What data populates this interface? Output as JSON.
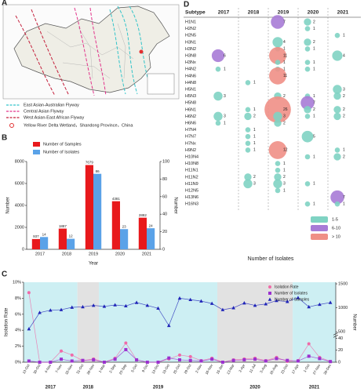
{
  "panel_labels": [
    "A",
    "B",
    "C",
    "D"
  ],
  "map": {
    "legend": [
      {
        "label": "East Asian-Australian Flyway",
        "color": "#33c4c9"
      },
      {
        "label": "Central Asian Flyway",
        "color": "#e2338a"
      },
      {
        "label": "West Asian-East African Flyway",
        "color": "#c41f3b"
      }
    ],
    "site": "Yellow River Delta Wetland，Shandong Province，China"
  },
  "chart_data": [
    {
      "type": "bar",
      "xlabel": "Year",
      "ylabel": "Number",
      "y2label": "Number",
      "categories": [
        "2017",
        "2018",
        "2019",
        "2020",
        "2021"
      ],
      "series": [
        {
          "name": "Number of Samples",
          "color": "#e8191c",
          "values": [
            937,
            1887,
            7679,
            4381,
            2882
          ]
        },
        {
          "name": "Number of Isolates",
          "color": "#5aa2e8",
          "axis": "y2",
          "values": [
            14,
            12,
            86,
            23,
            24
          ]
        }
      ],
      "ylim": [
        0,
        8000
      ],
      "yticks": [
        0,
        2000,
        4000,
        6000,
        8000
      ],
      "y2lim": [
        0,
        100
      ],
      "y2ticks": [
        0,
        20,
        40,
        60,
        80,
        100
      ]
    },
    {
      "type": "line",
      "ylabel": "Isolation Rate",
      "y2label": "Number",
      "categories": [
        "13-Oct",
        "30-Oct",
        "4-Nov",
        "7-Nov",
        "18-Nov",
        "31-Oct",
        "28-Nov",
        "1-Mar",
        "2-Sep",
        "23-Sep",
        "5-Oct",
        "9-Oct",
        "13-Oct",
        "19-Oct",
        "25-Oct",
        "29-Oct",
        "2-Nov",
        "16-Nov",
        "15-Jan",
        "13-Mar",
        "2-Apr",
        "11-Jul",
        "3-Aug",
        "16-Aug",
        "23-Oct",
        "17-Apr",
        "1-Oct",
        "27-Nov",
        "28-Dec"
      ],
      "year_groups": [
        {
          "label": "2017",
          "count": 5
        },
        {
          "label": "2018",
          "count": 2
        },
        {
          "label": "2019",
          "count": 11
        },
        {
          "label": "2020",
          "count": 7
        },
        {
          "label": "2021",
          "count": 4
        }
      ],
      "band_colors": [
        "#cdeff3",
        "#e2e2e2"
      ],
      "series": [
        {
          "name": "Isolation Rate",
          "color": "#f06aa8",
          "marker": "circle",
          "values": [
            8.7,
            0,
            0,
            1.4,
            0.9,
            0.2,
            0.4,
            0,
            0.5,
            2.4,
            0.3,
            0,
            0,
            0.4,
            0.9,
            0.7,
            0.2,
            0.5,
            0,
            0.3,
            0.4,
            0.5,
            0.2,
            0.6,
            0.1,
            0.2,
            2.3,
            0.6,
            0.1
          ]
        },
        {
          "name": "Number of Isolates",
          "color": "#9b30d0",
          "marker": "square",
          "axis": "y2",
          "values": [
            2,
            0,
            0,
            5,
            2,
            3,
            4,
            0,
            5,
            21,
            4,
            0,
            0,
            7,
            4,
            3,
            2,
            5,
            0,
            3,
            4,
            5,
            2,
            6,
            3,
            2,
            10,
            6,
            1
          ]
        },
        {
          "name": "Number of Samples",
          "color": "#1f24b8",
          "marker": "triangle",
          "axis": "y3",
          "values": [
            560,
            900,
            950,
            960,
            1010,
            1020,
            1050,
            1030,
            1060,
            1040,
            1110,
            1050,
            990,
            630,
            1200,
            1170,
            1140,
            1090,
            960,
            1000,
            1100,
            1050,
            1080,
            1150,
            1130,
            1210,
            1020,
            1070,
            1110
          ]
        }
      ],
      "ylim": [
        0,
        10
      ],
      "yticks": [
        {
          "value": 0,
          "label": "0%"
        },
        {
          "value": 2,
          "label": "2%"
        },
        {
          "value": 4,
          "label": "4%"
        },
        {
          "value": 6,
          "label": "6%"
        },
        {
          "value": 8,
          "label": "8%"
        },
        {
          "value": 10,
          "label": "10%"
        }
      ],
      "y2lim": [
        0,
        40
      ],
      "y2ticks": [
        0,
        20,
        40
      ],
      "y3lim": [
        500,
        1500
      ],
      "y3ticks": [
        500,
        1000,
        1500
      ]
    },
    {
      "type": "bubble_matrix",
      "row_header": "Subtype",
      "xlabel": "Number of Isolates",
      "columns": [
        "2017",
        "2018",
        "2019",
        "2020",
        "2021"
      ],
      "bins": [
        {
          "label": "1-5",
          "max": 5,
          "color": "#7fd3c3"
        },
        {
          "label": "6-10",
          "max": 10,
          "color": "#a77bd6"
        },
        {
          "label": "> 10",
          "max": null,
          "color": "#ef8f86"
        }
      ],
      "rows": [
        {
          "name": "H1N1",
          "values": [
            null,
            null,
            7,
            2,
            null
          ]
        },
        {
          "name": "H2N2",
          "values": [
            null,
            null,
            null,
            1,
            null
          ]
        },
        {
          "name": "H2N5",
          "values": [
            null,
            null,
            null,
            null,
            1
          ]
        },
        {
          "name": "H3N1",
          "values": [
            null,
            null,
            4,
            2,
            null
          ]
        },
        {
          "name": "H3N2",
          "values": [
            null,
            null,
            1,
            1,
            null
          ]
        },
        {
          "name": "H3N8",
          "values": [
            6,
            null,
            11,
            null,
            4
          ]
        },
        {
          "name": "H3Nx",
          "values": [
            null,
            null,
            1,
            1,
            null
          ]
        },
        {
          "name": "H4N2",
          "values": [
            1,
            null,
            1,
            1,
            null
          ]
        },
        {
          "name": "H4N6",
          "values": [
            null,
            null,
            11,
            null,
            null
          ]
        },
        {
          "name": "H4N8",
          "values": [
            null,
            1,
            null,
            null,
            null
          ]
        },
        {
          "name": "H5N1",
          "values": [
            null,
            null,
            null,
            null,
            3
          ]
        },
        {
          "name": "H5N3",
          "values": [
            3,
            null,
            2,
            1,
            2
          ]
        },
        {
          "name": "H5N8",
          "values": [
            null,
            null,
            null,
            7,
            null
          ]
        },
        {
          "name": "H6N1",
          "values": [
            null,
            1,
            26,
            2,
            2
          ]
        },
        {
          "name": "H6N2",
          "values": [
            3,
            2,
            3,
            1,
            2
          ]
        },
        {
          "name": "H6N6",
          "values": [
            1,
            null,
            2,
            null,
            null
          ]
        },
        {
          "name": "H7N4",
          "values": [
            null,
            1,
            null,
            null,
            null
          ]
        },
        {
          "name": "H7N7",
          "values": [
            null,
            1,
            null,
            5,
            null
          ]
        },
        {
          "name": "H7Nx",
          "values": [
            null,
            1,
            null,
            null,
            null
          ]
        },
        {
          "name": "H9N2",
          "values": [
            null,
            1,
            12,
            null,
            1
          ]
        },
        {
          "name": "H10N4",
          "values": [
            null,
            null,
            null,
            1,
            2
          ]
        },
        {
          "name": "H10N8",
          "values": [
            null,
            null,
            1,
            null,
            null
          ]
        },
        {
          "name": "H11N1",
          "values": [
            null,
            null,
            1,
            null,
            null
          ]
        },
        {
          "name": "H11N2",
          "values": [
            null,
            2,
            2,
            null,
            null
          ]
        },
        {
          "name": "H11N9",
          "values": [
            null,
            3,
            3,
            1,
            null
          ]
        },
        {
          "name": "H12N5",
          "values": [
            null,
            null,
            1,
            null,
            null
          ]
        },
        {
          "name": "H13N6",
          "values": [
            null,
            null,
            null,
            null,
            7
          ]
        },
        {
          "name": "H16N3",
          "values": [
            null,
            null,
            null,
            1,
            1
          ]
        }
      ]
    }
  ]
}
